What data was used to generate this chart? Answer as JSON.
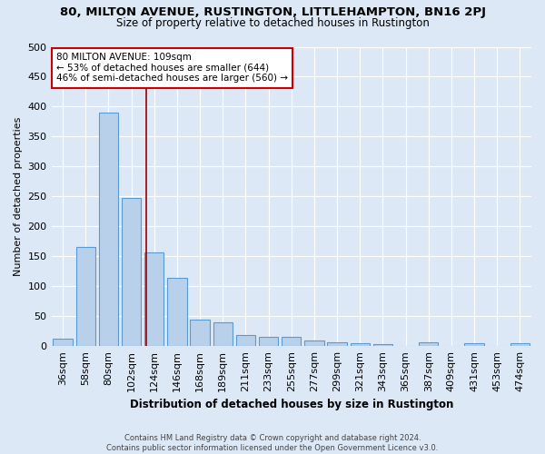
{
  "title": "80, MILTON AVENUE, RUSTINGTON, LITTLEHAMPTON, BN16 2PJ",
  "subtitle": "Size of property relative to detached houses in Rustington",
  "xlabel": "Distribution of detached houses by size in Rustington",
  "ylabel": "Number of detached properties",
  "footer_line1": "Contains HM Land Registry data © Crown copyright and database right 2024.",
  "footer_line2": "Contains public sector information licensed under the Open Government Licence v3.0.",
  "categories": [
    "36sqm",
    "58sqm",
    "80sqm",
    "102sqm",
    "124sqm",
    "146sqm",
    "168sqm",
    "189sqm",
    "211sqm",
    "233sqm",
    "255sqm",
    "277sqm",
    "299sqm",
    "321sqm",
    "343sqm",
    "365sqm",
    "387sqm",
    "409sqm",
    "431sqm",
    "453sqm",
    "474sqm"
  ],
  "values": [
    13,
    165,
    390,
    248,
    157,
    114,
    44,
    40,
    18,
    15,
    15,
    10,
    6,
    5,
    4,
    0,
    7,
    0,
    5,
    0,
    5
  ],
  "bar_color": "#b8d0ea",
  "bar_edge_color": "#5b9bd5",
  "background_color": "#dce8f5",
  "vline_color": "#990000",
  "annotation_title": "80 MILTON AVENUE: 109sqm",
  "annotation_line1": "← 53% of detached houses are smaller (644)",
  "annotation_line2": "46% of semi-detached houses are larger (560) →",
  "annotation_box_color": "#ffffff",
  "annotation_box_edge": "#cc0000",
  "ylim": [
    0,
    500
  ],
  "yticks": [
    0,
    50,
    100,
    150,
    200,
    250,
    300,
    350,
    400,
    450,
    500
  ],
  "title_fontsize": 9.5,
  "subtitle_fontsize": 8.5
}
